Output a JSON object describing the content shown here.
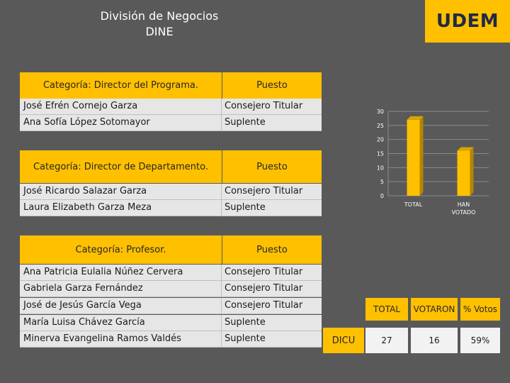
{
  "header": {
    "title_line1": "División de Negocios",
    "title_line2": "DINE",
    "logo": "UDEM"
  },
  "tables": [
    {
      "category": "Categoría: Director del Programa.",
      "puesto": "Puesto",
      "rows": [
        {
          "name": "José Efrén Cornejo Garza",
          "puesto": "Consejero Titular"
        },
        {
          "name": "Ana Sofía López Sotomayor",
          "puesto": "Suplente"
        }
      ]
    },
    {
      "category": "Categoría: Director de Departamento.",
      "puesto": "Puesto",
      "rows": [
        {
          "name": "José Ricardo Salazar Garza",
          "puesto": "Consejero Titular"
        },
        {
          "name": "Laura Elizabeth Garza Meza",
          "puesto": "Suplente"
        }
      ]
    },
    {
      "category": "Categoría: Profesor.",
      "puesto": "Puesto",
      "rows": [
        {
          "name": "Ana Patricia Eulalia Núñez Cervera",
          "puesto": "Consejero Titular"
        },
        {
          "name": "Gabriela Garza Fernández",
          "puesto": "Consejero Titular"
        },
        {
          "name": "José de Jesús García Vega",
          "puesto": "Consejero Titular"
        },
        {
          "name": "María Luisa Chávez García",
          "puesto": "Suplente"
        },
        {
          "name": "Minerva Evangelina Ramos Valdés",
          "puesto": "Suplente"
        }
      ]
    }
  ],
  "chart_data": {
    "type": "bar",
    "categories": [
      "TOTAL",
      "HAN VOTADO"
    ],
    "values": [
      27,
      16
    ],
    "yticks": [
      0,
      5,
      10,
      15,
      20,
      25,
      30
    ],
    "ylim": [
      0,
      30
    ],
    "grid": true,
    "bar_color": "#ffc000"
  },
  "votes": {
    "headers": [
      "TOTAL",
      "VOTARON",
      "% Votos"
    ],
    "row_label": "DICU",
    "values": [
      "27",
      "16",
      "59%"
    ]
  },
  "colors": {
    "accent": "#ffc000",
    "background": "#595959"
  }
}
